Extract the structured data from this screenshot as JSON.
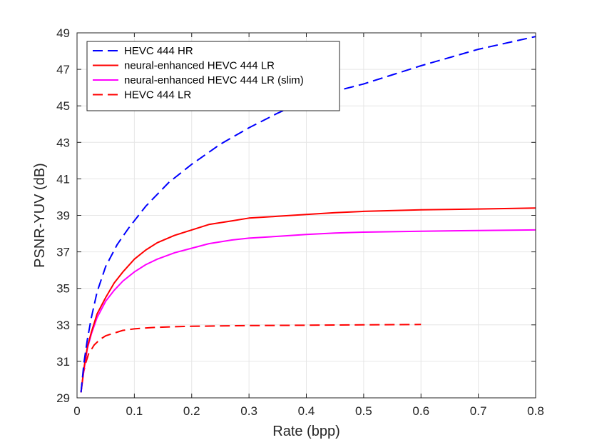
{
  "chart_data": {
    "type": "line",
    "title": "",
    "xlabel": "Rate (bpp)",
    "ylabel": "PSNR-YUV (dB)",
    "xlim": [
      0,
      0.8
    ],
    "ylim": [
      29,
      49
    ],
    "xticks": [
      0,
      0.1,
      0.2,
      0.3,
      0.4,
      0.5,
      0.6,
      0.7,
      0.8
    ],
    "xtick_labels": [
      "0",
      "0.1",
      "0.2",
      "0.3",
      "0.4",
      "0.5",
      "0.6",
      "0.7",
      "0.8"
    ],
    "yticks": [
      29,
      31,
      33,
      35,
      37,
      39,
      41,
      43,
      45,
      47,
      49
    ],
    "ytick_labels": [
      "29",
      "31",
      "33",
      "35",
      "37",
      "39",
      "41",
      "43",
      "45",
      "47",
      "49"
    ],
    "grid": true,
    "legend_position": "top-left",
    "series": [
      {
        "name": "HEVC 444 HR",
        "color": "#0000ff",
        "style": "dashed",
        "x": [
          0.007,
          0.012,
          0.018,
          0.025,
          0.035,
          0.05,
          0.07,
          0.09,
          0.12,
          0.16,
          0.2,
          0.25,
          0.3,
          0.35,
          0.4,
          0.45,
          0.5,
          0.6,
          0.7,
          0.8
        ],
        "y": [
          29.3,
          30.9,
          32.2,
          33.4,
          34.8,
          36.2,
          37.4,
          38.3,
          39.5,
          40.8,
          41.8,
          42.9,
          43.8,
          44.6,
          45.3,
          45.8,
          46.2,
          47.2,
          48.1,
          48.8
        ]
      },
      {
        "name": "neural-enhanced HEVC 444 LR",
        "color": "#ff0000",
        "style": "solid",
        "x": [
          0.007,
          0.012,
          0.018,
          0.025,
          0.035,
          0.05,
          0.065,
          0.08,
          0.1,
          0.12,
          0.14,
          0.17,
          0.2,
          0.23,
          0.27,
          0.3,
          0.35,
          0.4,
          0.45,
          0.5,
          0.6,
          0.7,
          0.8
        ],
        "y": [
          29.3,
          30.6,
          31.8,
          32.6,
          33.6,
          34.5,
          35.3,
          35.9,
          36.6,
          37.1,
          37.5,
          37.9,
          38.2,
          38.5,
          38.7,
          38.85,
          38.95,
          39.05,
          39.15,
          39.22,
          39.3,
          39.35,
          39.4
        ]
      },
      {
        "name": "neural-enhanced HEVC 444 LR (slim)",
        "color": "#ff00ff",
        "style": "solid",
        "x": [
          0.007,
          0.012,
          0.018,
          0.025,
          0.035,
          0.05,
          0.065,
          0.08,
          0.1,
          0.12,
          0.14,
          0.17,
          0.2,
          0.23,
          0.27,
          0.3,
          0.35,
          0.4,
          0.45,
          0.5,
          0.6,
          0.7,
          0.8
        ],
        "y": [
          29.3,
          30.5,
          31.7,
          32.5,
          33.4,
          34.3,
          34.9,
          35.4,
          35.9,
          36.3,
          36.6,
          36.95,
          37.2,
          37.45,
          37.65,
          37.75,
          37.85,
          37.95,
          38.03,
          38.08,
          38.13,
          38.17,
          38.2
        ]
      },
      {
        "name": "HEVC 444 LR",
        "color": "#ff0000",
        "style": "dashed",
        "x": [
          0.007,
          0.01,
          0.015,
          0.02,
          0.03,
          0.04,
          0.05,
          0.065,
          0.08,
          0.1,
          0.13,
          0.17,
          0.2,
          0.3,
          0.4,
          0.5,
          0.6
        ],
        "y": [
          29.3,
          30.2,
          30.9,
          31.4,
          31.9,
          32.2,
          32.4,
          32.55,
          32.7,
          32.78,
          32.85,
          32.9,
          32.92,
          32.96,
          32.98,
          33.0,
          33.02
        ]
      }
    ]
  }
}
